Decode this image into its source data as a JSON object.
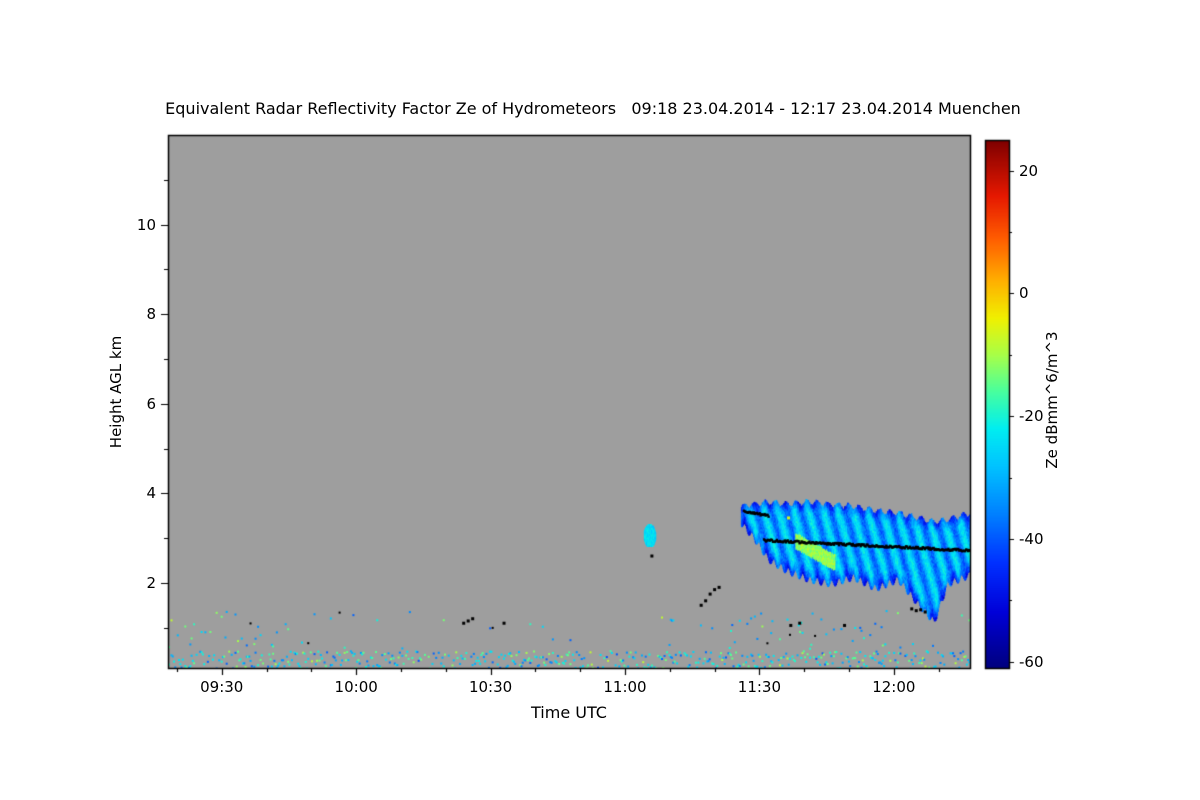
{
  "figure": {
    "title": "Equivalent Radar Reflectivity Factor Ze of Hydrometeors   09:18 23.04.2014 - 12:17 23.04.2014 Muenchen"
  },
  "chart_data": {
    "type": "heatmap",
    "title": "Equivalent Radar Reflectivity Factor Ze of Hydrometeors   09:18 23.04.2014 - 12:17 23.04.2014 Muenchen",
    "location": "Muenchen",
    "time_start": "09:18 23.04.2014",
    "time_end": "12:17 23.04.2014",
    "xlabel": "Time UTC",
    "ylabel": "Height AGL km",
    "x_start_min": 0,
    "x_end_min": 179,
    "x_ticks": [
      {
        "min": 12,
        "label": "09:30"
      },
      {
        "min": 42,
        "label": "10:00"
      },
      {
        "min": 72,
        "label": "10:30"
      },
      {
        "min": 102,
        "label": "11:00"
      },
      {
        "min": 132,
        "label": "11:30"
      },
      {
        "min": 162,
        "label": "12:00"
      }
    ],
    "ylim": [
      0.1,
      12.0
    ],
    "y_ticks": [
      2,
      4,
      6,
      8,
      10
    ],
    "grid": false,
    "no_signal_color": "#9e9e9e",
    "colorbar": {
      "label": "Ze dBmm^6/m^3",
      "ticks": [
        -60,
        -40,
        -20,
        0,
        20
      ],
      "vmin": -61,
      "vmax": 25,
      "stops": [
        [
          -61,
          "#00007f"
        ],
        [
          -52,
          "#0000d8"
        ],
        [
          -44,
          "#0030ff"
        ],
        [
          -36,
          "#0080ff"
        ],
        [
          -28,
          "#00c4ff"
        ],
        [
          -22,
          "#00eef0"
        ],
        [
          -16,
          "#48ff9e"
        ],
        [
          -10,
          "#a8ff48"
        ],
        [
          -4,
          "#f0f000"
        ],
        [
          2,
          "#ffb000"
        ],
        [
          9,
          "#ff5c00"
        ],
        [
          16,
          "#e51800"
        ],
        [
          25,
          "#7f0000"
        ]
      ]
    },
    "features": {
      "cloud_layer": {
        "description": "low stratiform cloud layer between 11:26 and 12:17 UTC, Ze mostly -40 to -22 dB (blue/cyan)",
        "t_start": 128,
        "t_end": 179,
        "profile": [
          {
            "t": 128,
            "base": 3.35,
            "top": 3.7
          },
          {
            "t": 131,
            "base": 3.0,
            "top": 3.75
          },
          {
            "t": 134,
            "base": 2.55,
            "top": 3.8
          },
          {
            "t": 138,
            "base": 2.3,
            "top": 3.75
          },
          {
            "t": 143,
            "base": 2.1,
            "top": 3.8
          },
          {
            "t": 148,
            "base": 2.0,
            "top": 3.75
          },
          {
            "t": 153,
            "base": 2.15,
            "top": 3.7
          },
          {
            "t": 158,
            "base": 1.9,
            "top": 3.6
          },
          {
            "t": 163,
            "base": 2.1,
            "top": 3.55
          },
          {
            "t": 167,
            "base": 1.6,
            "top": 3.45
          },
          {
            "t": 171,
            "base": 1.15,
            "top": 3.35
          },
          {
            "t": 174,
            "base": 2.0,
            "top": 3.4
          },
          {
            "t": 179,
            "base": 2.2,
            "top": 3.55
          }
        ],
        "ze_range": [
          -40,
          -22
        ],
        "bright_streak": {
          "t_start": 140,
          "t_end": 149,
          "h_start": 2.95,
          "h_end": 2.45,
          "half_width": 0.18,
          "ze": -11
        }
      },
      "warm_spots": [
        {
          "t": 138.5,
          "h": 3.45,
          "ze": -6
        },
        {
          "t": 141.5,
          "h": 2.85,
          "ze": -7
        }
      ],
      "black_track_segments": [
        {
          "t_start": 128.5,
          "t_end": 134,
          "h_start": 3.6,
          "h_end": 3.5
        },
        {
          "t_start": 133,
          "t_end": 179,
          "h_start": 2.95,
          "h_end": 2.72
        }
      ],
      "isolated_patch": {
        "t_start": 106.2,
        "t_end": 108.8,
        "h_base": 2.8,
        "h_top": 3.3,
        "ze": -24
      },
      "black_specks": [
        {
          "t": 66,
          "h": 1.1
        },
        {
          "t": 67,
          "h": 1.15
        },
        {
          "t": 68,
          "h": 1.2
        },
        {
          "t": 75,
          "h": 1.1
        },
        {
          "t": 108,
          "h": 2.6
        },
        {
          "t": 119,
          "h": 1.5
        },
        {
          "t": 120,
          "h": 1.6
        },
        {
          "t": 121,
          "h": 1.75
        },
        {
          "t": 122,
          "h": 1.85
        },
        {
          "t": 123,
          "h": 1.9
        },
        {
          "t": 139,
          "h": 1.05
        },
        {
          "t": 141,
          "h": 1.1
        },
        {
          "t": 151,
          "h": 1.05
        },
        {
          "t": 166,
          "h": 1.42
        },
        {
          "t": 167,
          "h": 1.38
        },
        {
          "t": 168,
          "h": 1.4
        },
        {
          "t": 169,
          "h": 1.35
        }
      ],
      "surface_clutter": {
        "dense_band_h": [
          0.1,
          0.5
        ],
        "sparse_band_h": [
          0.55,
          1.4
        ],
        "palette_values": [
          -32,
          -27,
          -22,
          -17,
          -12,
          -37
        ]
      }
    }
  }
}
